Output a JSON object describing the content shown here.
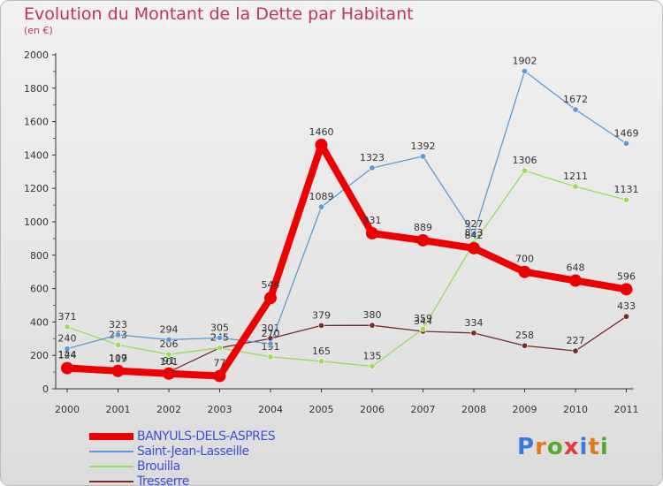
{
  "title": "Evolution du Montant de la Dette par Habitant",
  "unit_label": "(en €)",
  "logo": {
    "text": "Proxiti",
    "letter_colors": [
      "#3a7bd5",
      "#e07a1a",
      "#5aaa2a",
      "#e03a3a",
      "#3a7bd5",
      "#e07a1a",
      "#5aaa2a"
    ]
  },
  "chart_data": {
    "type": "line",
    "x": [
      "2000",
      "2001",
      "2002",
      "2003",
      "2004",
      "2005",
      "2006",
      "2007",
      "2008",
      "2009",
      "2010",
      "2011"
    ],
    "ylim": [
      0,
      2000
    ],
    "yticks": [
      0,
      200,
      400,
      600,
      800,
      1000,
      1200,
      1400,
      1600,
      1800,
      2000
    ],
    "grid": false,
    "legend_position": "bottom-left",
    "series": [
      {
        "name": "BANYULS-DELS-ASPRES",
        "color": "#ee0000",
        "values": [
          124,
          107,
          91,
          77,
          544,
          1460,
          931,
          889,
          842,
          700,
          648,
          596
        ]
      },
      {
        "name": "Saint-Jean-Lasseille",
        "color": "#5b9bd5",
        "values": [
          240,
          323,
          294,
          305,
          270,
          1089,
          1323,
          1392,
          927,
          1902,
          1672,
          1469
        ]
      },
      {
        "name": "Brouilla",
        "color": "#99dd55",
        "values": [
          371,
          263,
          206,
          245,
          191,
          165,
          135,
          359,
          873,
          1306,
          1211,
          1131
        ]
      },
      {
        "name": "Tresserre",
        "color": "#7a2a2a",
        "values": [
          144,
          119,
          101,
          245,
          301,
          379,
          380,
          344,
          334,
          258,
          227,
          433
        ]
      }
    ]
  }
}
